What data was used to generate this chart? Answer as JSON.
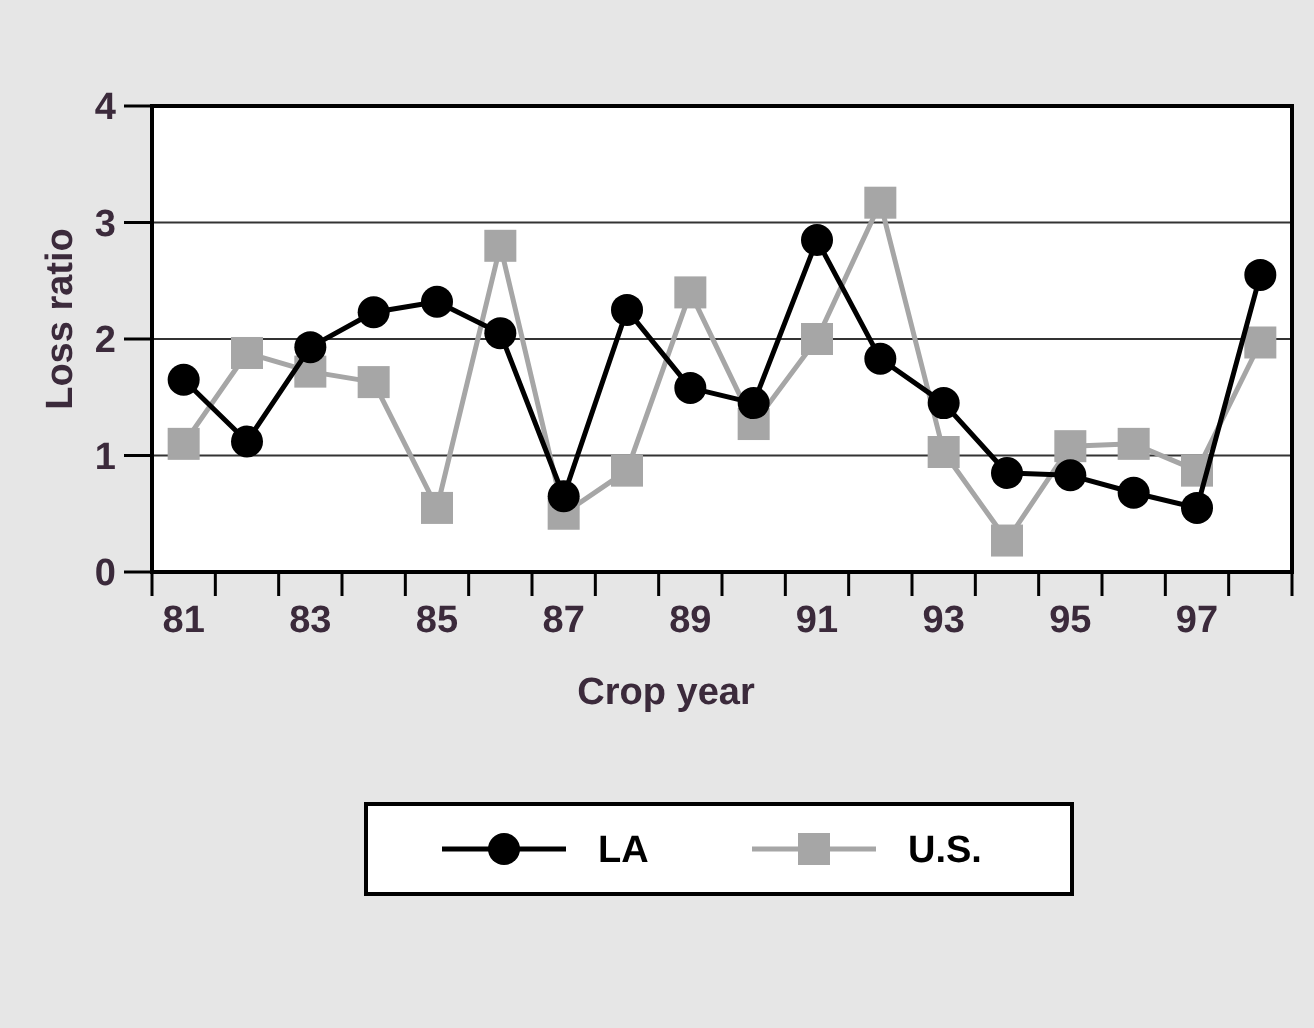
{
  "chart_data": {
    "type": "line",
    "xlabel": "Crop year",
    "ylabel": "Loss ratio",
    "categories": [
      "81",
      null,
      "83",
      null,
      "85",
      null,
      "87",
      null,
      "89",
      null,
      "91",
      null,
      "93",
      null,
      "95",
      null,
      "97",
      null
    ],
    "series": [
      {
        "name": "LA",
        "color": "#000000",
        "marker": "circle",
        "values": [
          1.65,
          1.12,
          1.93,
          2.23,
          2.32,
          2.05,
          0.65,
          2.25,
          1.58,
          1.45,
          2.85,
          1.83,
          1.45,
          0.85,
          0.83,
          0.68,
          0.55,
          2.55
        ]
      },
      {
        "name": "U.S.",
        "color": "#a6a6a6",
        "marker": "square",
        "values": [
          1.1,
          1.88,
          1.72,
          1.63,
          0.55,
          2.8,
          0.5,
          0.87,
          2.4,
          1.27,
          2.0,
          3.17,
          1.03,
          0.27,
          1.08,
          1.1,
          0.87,
          1.97
        ]
      }
    ],
    "ylim": [
      0,
      4
    ],
    "yticks": [
      0,
      1,
      2,
      3,
      4
    ],
    "grid": "y",
    "legend": "bottom"
  }
}
